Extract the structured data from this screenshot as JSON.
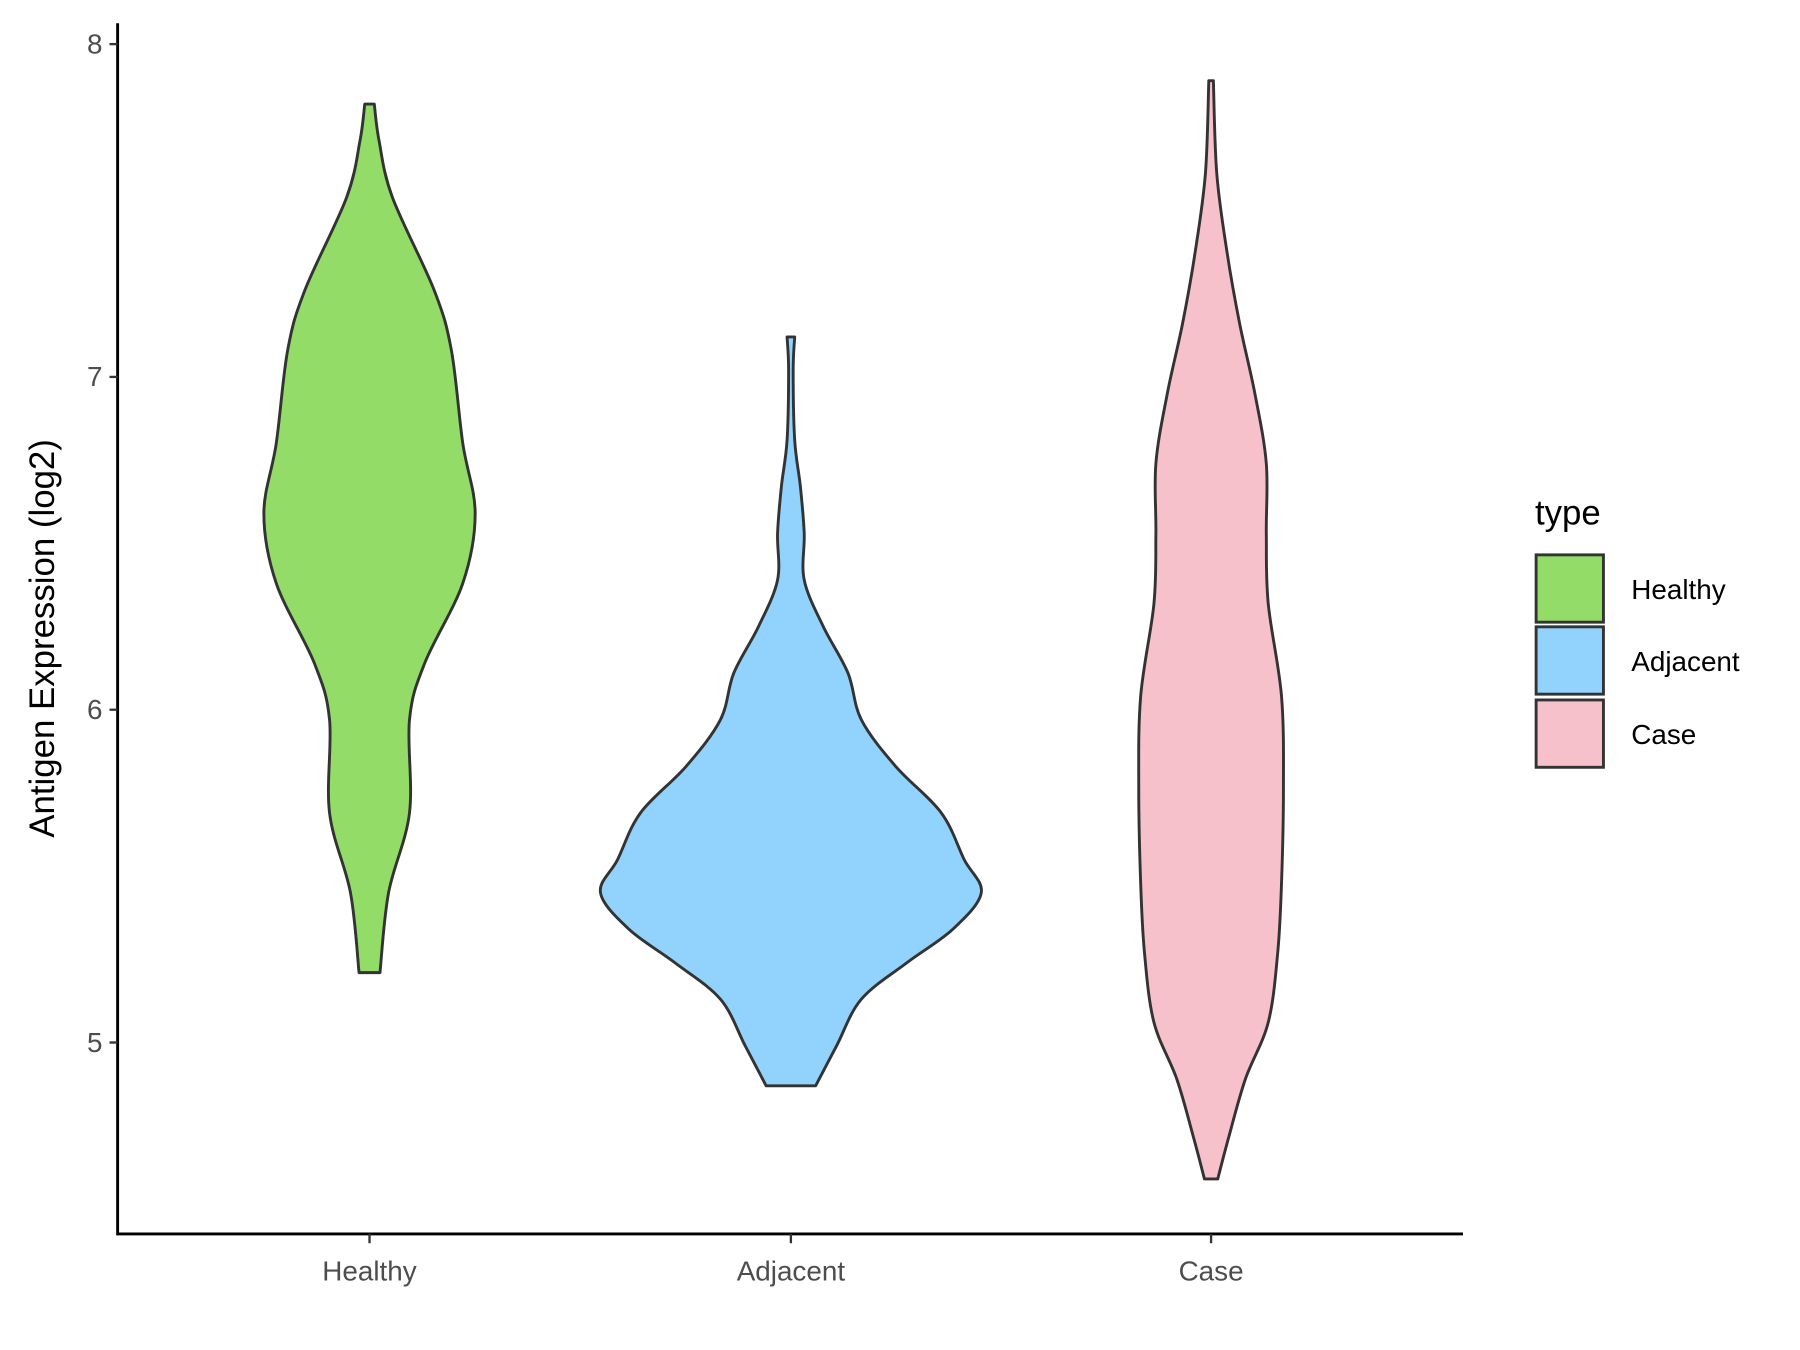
{
  "chart_data": {
    "type": "violin",
    "title": "",
    "xlabel": "",
    "ylabel": "Antigen Expression (log2)",
    "categories": [
      "Healthy",
      "Adjacent",
      "Case"
    ],
    "ylim": [
      4.43,
      8.06
    ],
    "yticks": [
      5,
      6,
      7,
      8
    ],
    "grid": false,
    "legend": {
      "title": "type",
      "placement": "right",
      "entries": [
        "Healthy",
        "Adjacent",
        "Case"
      ]
    },
    "series": [
      {
        "name": "Healthy",
        "color": "#93dc68",
        "profile": [
          [
            5.21,
            0.055
          ],
          [
            5.45,
            0.1
          ],
          [
            5.69,
            0.21
          ],
          [
            5.97,
            0.21
          ],
          [
            6.14,
            0.29
          ],
          [
            6.38,
            0.49
          ],
          [
            6.59,
            0.555
          ],
          [
            6.8,
            0.49
          ],
          [
            7.08,
            0.43
          ],
          [
            7.26,
            0.34
          ],
          [
            7.54,
            0.12
          ],
          [
            7.71,
            0.05
          ],
          [
            7.82,
            0.025
          ]
        ]
      },
      {
        "name": "Adjacent",
        "color": "#92d3fd",
        "profile": [
          [
            4.87,
            0.13
          ],
          [
            4.99,
            0.24
          ],
          [
            5.13,
            0.37
          ],
          [
            5.24,
            0.61
          ],
          [
            5.34,
            0.85
          ],
          [
            5.45,
            1.0
          ],
          [
            5.55,
            0.91
          ],
          [
            5.69,
            0.79
          ],
          [
            5.83,
            0.55
          ],
          [
            5.97,
            0.37
          ],
          [
            6.11,
            0.3
          ],
          [
            6.25,
            0.17
          ],
          [
            6.39,
            0.07
          ],
          [
            6.53,
            0.07
          ],
          [
            6.67,
            0.05
          ],
          [
            6.81,
            0.02
          ],
          [
            7.02,
            0.012
          ],
          [
            7.12,
            0.02
          ]
        ]
      },
      {
        "name": "Case",
        "color": "#f7c1cc",
        "profile": [
          [
            4.59,
            0.035
          ],
          [
            4.71,
            0.09
          ],
          [
            4.89,
            0.18
          ],
          [
            5.06,
            0.3
          ],
          [
            5.27,
            0.35
          ],
          [
            5.48,
            0.37
          ],
          [
            5.76,
            0.38
          ],
          [
            6.04,
            0.37
          ],
          [
            6.32,
            0.3
          ],
          [
            6.53,
            0.29
          ],
          [
            6.74,
            0.29
          ],
          [
            6.95,
            0.23
          ],
          [
            7.16,
            0.15
          ],
          [
            7.37,
            0.085
          ],
          [
            7.61,
            0.03
          ],
          [
            7.89,
            0.012
          ]
        ]
      }
    ]
  }
}
